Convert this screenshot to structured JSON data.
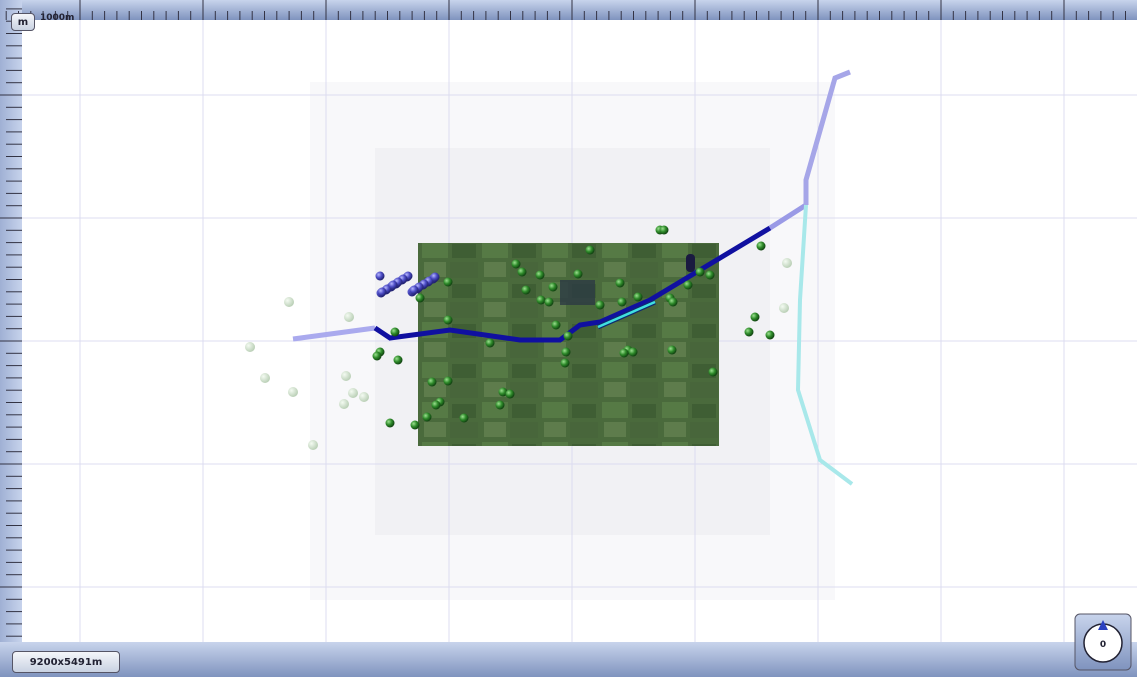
{
  "toolbar": {
    "unit_button": "m",
    "scale_label": "1000m"
  },
  "status_bar": {
    "extent": "9200x5491m"
  },
  "compass": {
    "heading": "0"
  }
}
